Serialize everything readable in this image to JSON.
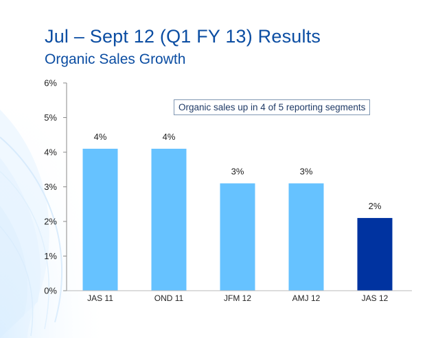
{
  "slide": {
    "title": "Jul – Sept 12 (Q1 FY 13) Results",
    "subtitle": "Organic Sales Growth"
  },
  "colors": {
    "title": "#0b4da2",
    "bar": "#66c2ff",
    "bar_highlight": "#0033a0",
    "axis_text": "#222222"
  },
  "chart_data": {
    "type": "bar",
    "title": "",
    "xlabel": "",
    "ylabel": "",
    "categories": [
      "JAS 11",
      "OND 11",
      "JFM 12",
      "AMJ 12",
      "JAS 12"
    ],
    "values": [
      4.1,
      4.1,
      3.1,
      3.1,
      2.1
    ],
    "data_labels": [
      "4%",
      "4%",
      "3%",
      "3%",
      "2%"
    ],
    "highlight_index": 4,
    "ylim": [
      0,
      6
    ],
    "yticks": [
      0,
      1,
      2,
      3,
      4,
      5,
      6
    ],
    "ytick_labels": [
      "0%",
      "1%",
      "2%",
      "3%",
      "4%",
      "5%",
      "6%"
    ],
    "grid": false,
    "annotation": "Organic sales up in 4 of 5 reporting segments"
  }
}
